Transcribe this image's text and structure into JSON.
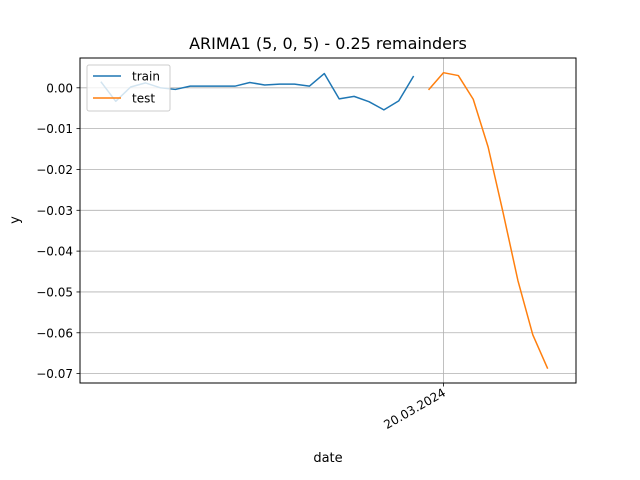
{
  "chart_data": {
    "type": "line",
    "title": "ARIMA1 (5, 0, 5) - 0.25 remainders",
    "xlabel": "date",
    "ylabel": "y",
    "ylim": [
      -0.0723,
      0.0073
    ],
    "yticks": [
      0.0,
      -0.01,
      -0.02,
      -0.03,
      -0.04,
      -0.05,
      -0.06,
      -0.07
    ],
    "ytick_labels": [
      "0.00",
      "−0.01",
      "−0.02",
      "−0.03",
      "−0.04",
      "−0.05",
      "−0.06",
      "−0.07"
    ],
    "x_tick_label": "20.03.2024",
    "x_tick_index": 23,
    "xlim": [
      -1.4,
      31.9
    ],
    "grid": "horizontal lines; vertical line at date tick",
    "legend_position": "top-left",
    "series": [
      {
        "name": "train",
        "color": "#1f77b4",
        "start_index": 0,
        "values": [
          0.0015,
          -0.0033,
          0.0002,
          0.0012,
          0.0,
          -0.0004,
          0.0004,
          0.0004,
          0.0004,
          0.0004,
          0.0013,
          0.0007,
          0.0009,
          0.0009,
          0.0004,
          0.0035,
          -0.0027,
          -0.0021,
          -0.0034,
          -0.0054,
          -0.0032,
          0.0029
        ]
      },
      {
        "name": "test",
        "color": "#ff7f0e",
        "start_index": 22,
        "values": [
          -0.0005,
          0.0037,
          0.003,
          -0.0028,
          -0.0145,
          -0.0305,
          -0.0472,
          -0.0605,
          -0.0688
        ]
      }
    ]
  }
}
